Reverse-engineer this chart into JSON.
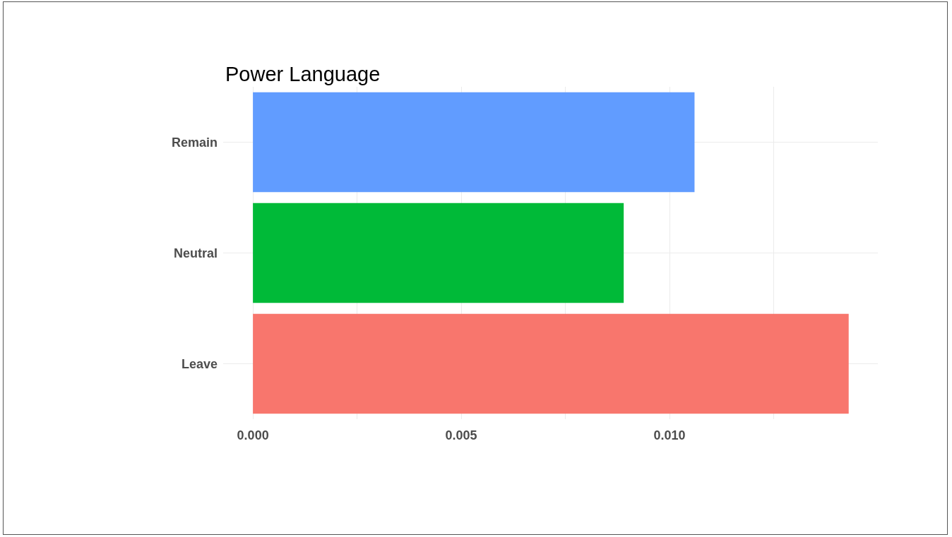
{
  "chart_data": {
    "type": "bar",
    "orientation": "horizontal",
    "title": "Power Language",
    "categories": [
      "Remain",
      "Neutral",
      "Leave"
    ],
    "values": [
      0.0106,
      0.0089,
      0.0143
    ],
    "colors": [
      "#619cff",
      "#00ba38",
      "#f8766d"
    ],
    "xlim": [
      -0.000714,
      0.015
    ],
    "xticks": [
      {
        "value": 0,
        "label": "0.000"
      },
      {
        "value": 0.0025,
        "label": null
      },
      {
        "value": 0.005,
        "label": "0.005"
      },
      {
        "value": 0.0075,
        "label": null
      },
      {
        "value": 0.01,
        "label": "0.010"
      },
      {
        "value": 0.0125,
        "label": null
      }
    ],
    "grid": true
  }
}
